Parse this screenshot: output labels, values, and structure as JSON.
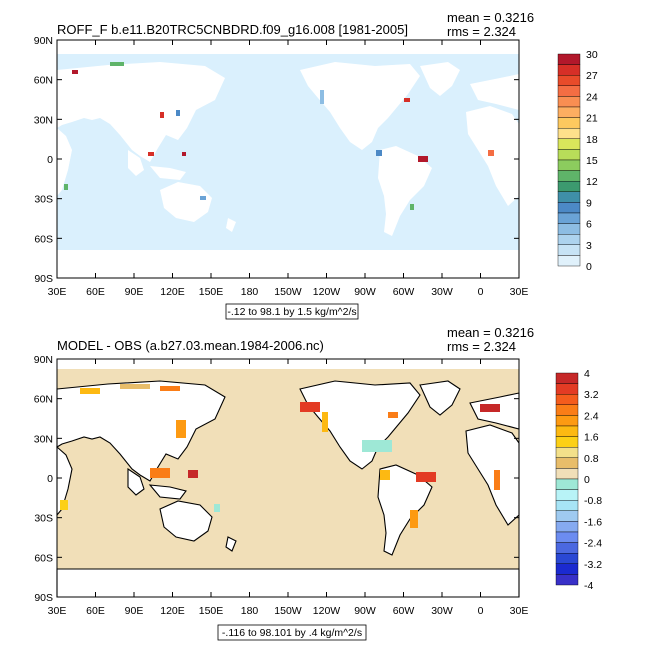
{
  "panels": [
    {
      "id": "top",
      "title": "ROFF_F b.e11.B20TRC5CNBDRD.f09_g16.008 [1981-2005]",
      "mean_text": "mean = 0.3216",
      "rms_text": "rms = 2.324",
      "range_text": "-.12 to 98.1 by 1.5 kg/m^2/s",
      "colorbar_labels": [
        "30",
        "27",
        "24",
        "21",
        "18",
        "15",
        "12",
        "9",
        "6",
        "3",
        "0"
      ],
      "colorbar_colors": [
        "#b2182b",
        "#d62f27",
        "#e84b2a",
        "#f46d43",
        "#f98e52",
        "#fdae61",
        "#fdc95f",
        "#fee08b",
        "#d9e65b",
        "#b8dd59",
        "#8ccc5e",
        "#5fb469",
        "#3c9a6f",
        "#3f8fa8",
        "#4c89c6",
        "#6aa3d6",
        "#8dbde3",
        "#add3ee",
        "#c7e3f5",
        "#e0f1fb"
      ],
      "chart_data": {
        "type": "heatmap",
        "title": "ROFF_F b.e11.B20TRC5CNBDRD.f09_g16.008 [1981-2005]",
        "x_ticks": [
          "30E",
          "60E",
          "90E",
          "120E",
          "150E",
          "180",
          "150W",
          "120W",
          "90W",
          "60W",
          "30W",
          "0",
          "30E"
        ],
        "y_ticks": [
          "90N",
          "60N",
          "30N",
          "0",
          "30S",
          "60S",
          "90S"
        ],
        "xlim": [
          30,
          390
        ],
        "ylim": [
          -90,
          90
        ],
        "color_range": [
          0,
          30
        ],
        "color_interval": 1.5,
        "ocean_color": "#daf0fd"
      }
    },
    {
      "id": "bottom",
      "title": "MODEL - OBS (a.b27.03.mean.1984-2006.nc)",
      "mean_text": "mean = 0.3216",
      "rms_text": "rms = 2.324",
      "range_text": "-.116 to 98.101 by .4 kg/m^2/s",
      "colorbar_labels": [
        "4",
        "3.2",
        "2.4",
        "1.6",
        "0.8",
        "0",
        "-0.8",
        "-1.6",
        "-2.4",
        "-3.2",
        "-4"
      ],
      "colorbar_colors": [
        "#c62828",
        "#e33b24",
        "#f45c1d",
        "#fa7d17",
        "#fd9a12",
        "#fdb912",
        "#fcd016",
        "#f3e08a",
        "#e8bd6a",
        "#f1dfb8",
        "#9ee8d6",
        "#b8f3f7",
        "#a7e4f6",
        "#9fcaf0",
        "#86aaf0",
        "#6c8cf0",
        "#4b68e0",
        "#2a48d4",
        "#1b2ad0",
        "#3830c8"
      ],
      "chart_data": {
        "type": "heatmap",
        "title": "MODEL - OBS (a.b27.03.mean.1984-2006.nc)",
        "x_ticks": [
          "30E",
          "60E",
          "90E",
          "120E",
          "150E",
          "180",
          "150W",
          "120W",
          "90W",
          "60W",
          "30W",
          "0",
          "30E"
        ],
        "y_ticks": [
          "90N",
          "60N",
          "30N",
          "0",
          "30S",
          "60S",
          "90S"
        ],
        "xlim": [
          30,
          390
        ],
        "ylim": [
          -90,
          90
        ],
        "color_range": [
          -4,
          4
        ],
        "color_interval": 0.4,
        "ocean_color": "#f1dfb8"
      }
    }
  ]
}
